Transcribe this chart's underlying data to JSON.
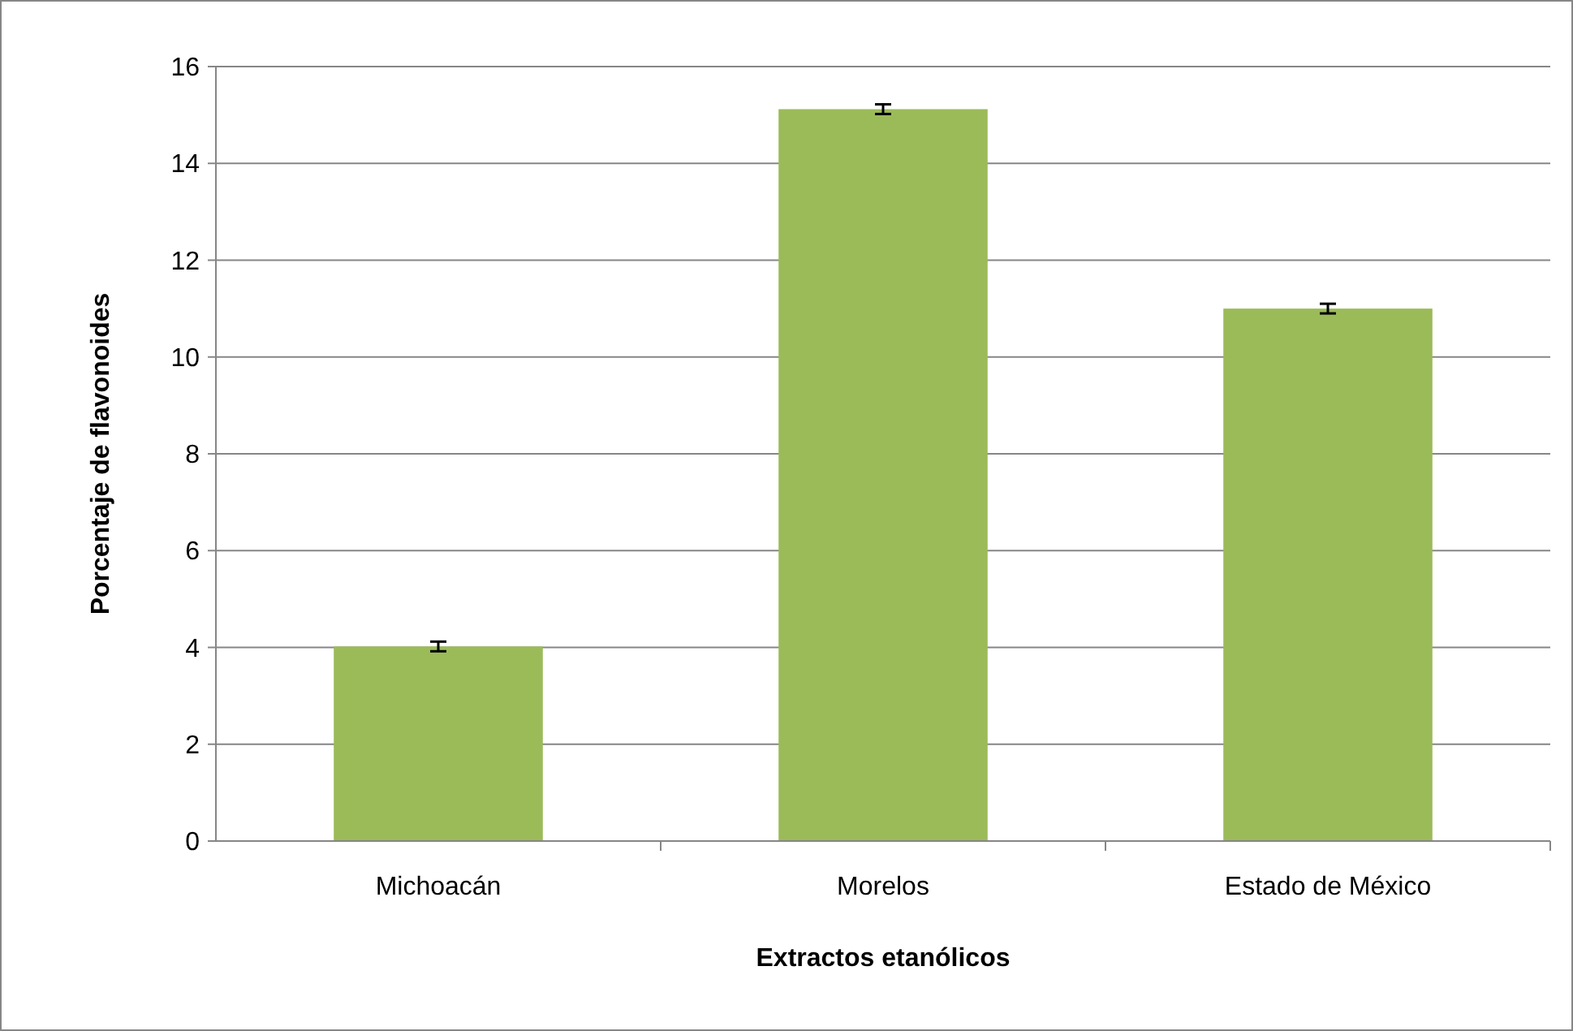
{
  "chart_data": {
    "type": "bar",
    "xlabel": "Extractos etanólicos",
    "ylabel": "Porcentaje de flavonoides",
    "categories": [
      "Michoacán",
      "Morelos",
      "Estado de México"
    ],
    "values": [
      4.02,
      15.12,
      11.0
    ],
    "errors": [
      0.1,
      0.1,
      0.1
    ],
    "color": "#9bbb59",
    "ylim": [
      0,
      16
    ],
    "yticks": [
      0,
      2,
      4,
      6,
      8,
      10,
      12,
      14,
      16
    ],
    "grid": "y"
  }
}
